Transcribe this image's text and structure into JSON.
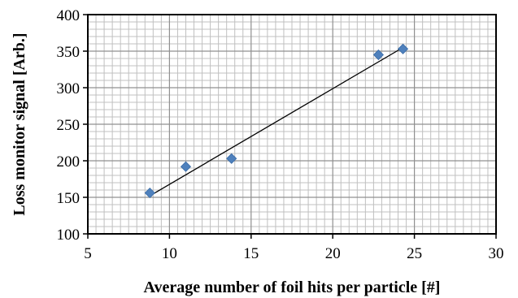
{
  "chart_data": {
    "type": "scatter",
    "title": "",
    "xlabel": "Average number of foil hits per particle [#]",
    "ylabel": "Loss monitor signal [Arb.]",
    "xlim": [
      5,
      30
    ],
    "ylim": [
      100,
      400
    ],
    "x_ticks": [
      5,
      10,
      15,
      20,
      25,
      30
    ],
    "y_ticks": [
      100,
      150,
      200,
      250,
      300,
      350,
      400
    ],
    "x_minor_step": 0.5,
    "y_minor_step": 10,
    "grid": true,
    "legend": "none",
    "series": [
      {
        "points": [
          {
            "x": 8.8,
            "y": 156
          },
          {
            "x": 11.0,
            "y": 192
          },
          {
            "x": 13.8,
            "y": 203
          },
          {
            "x": 22.8,
            "y": 345
          },
          {
            "x": 24.3,
            "y": 353
          }
        ]
      }
    ],
    "trendline": {
      "type": "linear",
      "x_range": [
        8.8,
        24.3
      ],
      "y_range": [
        152,
        355
      ]
    },
    "colors": {
      "marker": "#4F81BD",
      "trendline": "#000000",
      "grid_minor": "#C0C0C0",
      "grid_major": "#909090",
      "axis": "#000000"
    }
  }
}
